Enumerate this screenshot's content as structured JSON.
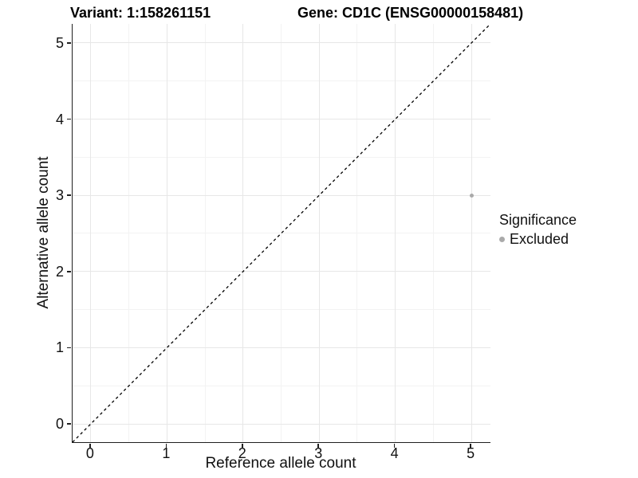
{
  "header": {
    "variant_title": "Variant: 1:158261151",
    "gene_title": "Gene: CD1C (ENSG00000158481)"
  },
  "chart_data": {
    "type": "scatter",
    "title": "Variant: 1:158261151   Gene: CD1C (ENSG00000158481)",
    "xlabel": "Reference allele count",
    "ylabel": "Alternative allele count",
    "xlim": [
      -0.24,
      5.25
    ],
    "ylim": [
      -0.24,
      5.25
    ],
    "x_ticks": [
      0,
      1,
      2,
      3,
      4,
      5
    ],
    "y_ticks": [
      0,
      1,
      2,
      3,
      4,
      5
    ],
    "grid": "major+minor",
    "legend": {
      "title": "Significance",
      "position": "right",
      "items": [
        {
          "label": "Excluded",
          "color": "#aaaaaa"
        }
      ]
    },
    "series": [
      {
        "name": "Excluded",
        "color": "#aaaaaa",
        "points": [
          {
            "x": 5,
            "y": 3
          }
        ]
      }
    ],
    "reference_line": {
      "style": "dashed",
      "equation": "y = x",
      "color": "#000000"
    }
  },
  "colors": {
    "axis_line": "#1f1f1f",
    "grid_major": "#e7e7e7",
    "grid_minor": "#f3f3f3",
    "background": "#ffffff"
  }
}
